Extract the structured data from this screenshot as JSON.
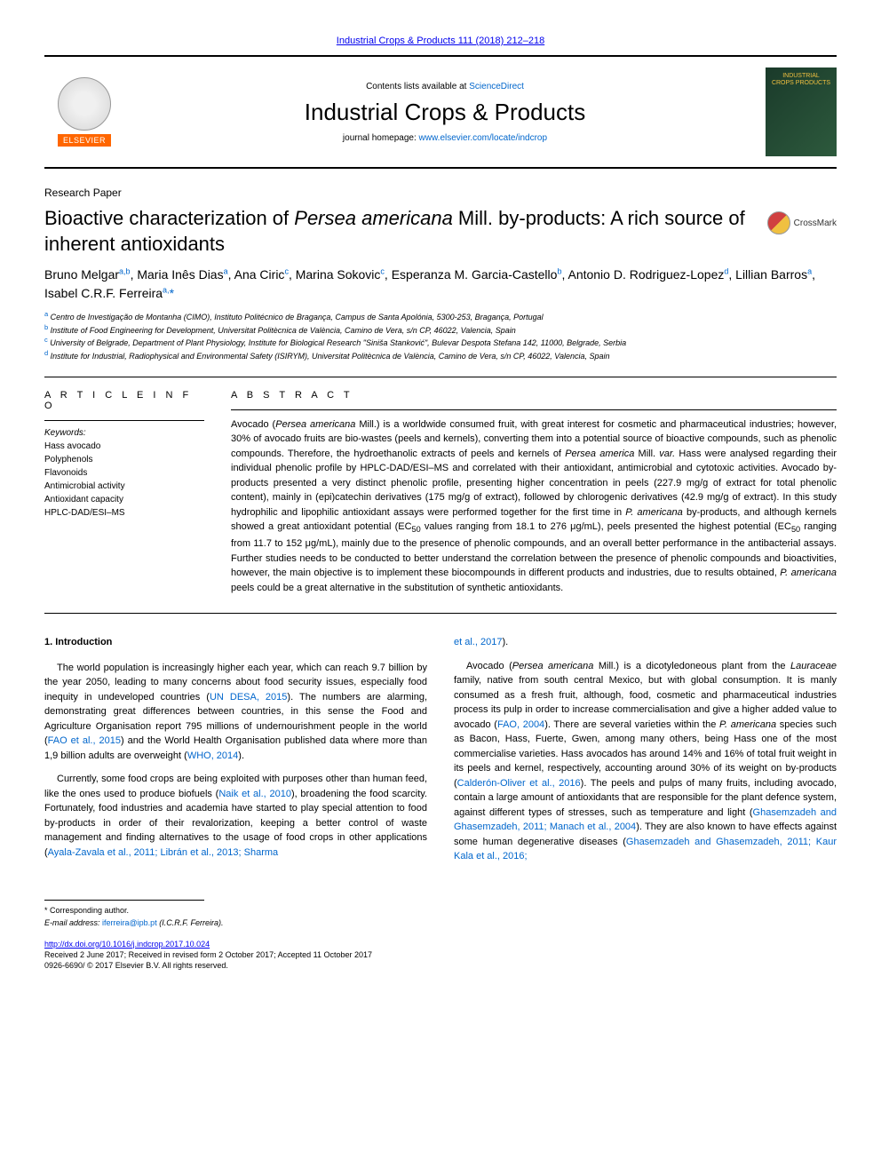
{
  "citation": "Industrial Crops & Products 111 (2018) 212–218",
  "header": {
    "contents_at": "Contents lists available at ",
    "sciencedirect": "ScienceDirect",
    "journal_name": "Industrial Crops & Products",
    "homepage_label": "journal homepage: ",
    "homepage_url": "www.elsevier.com/locate/indcrop",
    "elsevier_label": "ELSEVIER",
    "logo_text": "INDUSTRIAL CROPS PRODUCTS"
  },
  "paper_type": "Research Paper",
  "title_pre": "Bioactive characterization of ",
  "title_italic": "Persea americana",
  "title_post": " Mill. by-products: A rich source of inherent antioxidants",
  "crossmark_label": "CrossMark",
  "authors_html": "Bruno Melgar<sup>a,b</sup>, Maria Inês Dias<sup>a</sup>, Ana Ciric<sup>c</sup>, Marina Sokovic<sup>c</sup>, Esperanza M. Garcia-Castello<sup>b</sup>, Antonio D. Rodriguez-Lopez<sup>d</sup>, Lillian Barros<sup>a</sup>, Isabel C.R.F. Ferreira<sup>a,</sup><span class=\"corr\">*</span>",
  "affiliations": [
    {
      "sup": "a",
      "text": " Centro de Investigação de Montanha (CIMO), Instituto Politécnico de Bragança, Campus de Santa Apolónia, 5300-253, Bragança, Portugal"
    },
    {
      "sup": "b",
      "text": " Institute of Food Engineering for Development, Universitat Politècnica de València, Camino de Vera, s/n CP, 46022, Valencia, Spain"
    },
    {
      "sup": "c",
      "text": " University of Belgrade, Department of Plant Physiology, Institute for Biological Research \"Siniša Stanković\", Bulevar Despota Stefana 142, 11000, Belgrade, Serbia"
    },
    {
      "sup": "d",
      "text": " Institute for Industrial, Radiophysical and Environmental Safety (ISIRYM), Universitat Politècnica de València, Camino de Vera, s/n CP, 46022, Valencia, Spain"
    }
  ],
  "article_info_heading": "A R T I C L E  I N F O",
  "keywords_label": "Keywords:",
  "keywords": [
    "Hass avocado",
    "Polyphenols",
    "Flavonoids",
    "Antimicrobial activity",
    "Antioxidant capacity",
    "HPLC-DAD/ESI–MS"
  ],
  "abstract_heading": "A B S T R A C T",
  "abstract_html": "Avocado (<span class=\"italic\">Persea americana</span> Mill.) is a worldwide consumed fruit, with great interest for cosmetic and pharmaceutical industries; however, 30% of avocado fruits are bio-wastes (peels and kernels), converting them into a potential source of bioactive compounds, such as phenolic compounds. Therefore, the hydroethanolic extracts of peels and kernels of <span class=\"italic\">Persea america</span> Mill. <span class=\"italic\">var.</span> Hass were analysed regarding their individual phenolic profile by HPLC-DAD/ESI–MS and correlated with their antioxidant, antimicrobial and cytotoxic activities. Avocado by-products presented a very distinct phenolic profile, presenting higher concentration in peels (227.9 mg/g of extract for total phenolic content), mainly in (epi)catechin derivatives (175 mg/g of extract), followed by chlorogenic derivatives (42.9 mg/g of extract). In this study hydrophilic and lipophilic antioxidant assays were performed together for the first time in <span class=\"italic\">P. americana</span> by-products, and although kernels showed a great antioxidant potential (EC<sub>50</sub> values ranging from 18.1 to 276 μg/mL), peels presented the highest potential (EC<sub>50</sub> ranging from 11.7 to 152 μg/mL), mainly due to the presence of phenolic compounds, and an overall better performance in the antibacterial assays. Further studies needs to be conducted to better understand the correlation between the presence of phenolic compounds and bioactivities, however, the main objective is to implement these biocompounds in different products and industries, due to results obtained, <span class=\"italic\">P. americana</span> peels could be a great alternative in the substitution of synthetic antioxidants.",
  "intro_heading": "1. Introduction",
  "col1": {
    "p1_html": "The world population is increasingly higher each year, which can reach 9.7 billion by the year 2050, leading to many concerns about food security issues, especially food inequity in undeveloped countries (<a href=\"#\">UN DESA, 2015</a>). The numbers are alarming, demonstrating great differences between countries, in this sense the Food and Agriculture Organisation report 795 millions of undernourishment people in the world (<a href=\"#\">FAO et al., 2015</a>) and the World Health Organisation published data where more than 1,9 billion adults are overweight (<a href=\"#\">WHO, 2014</a>).",
    "p2_html": "Currently, some food crops are being exploited with purposes other than human feed, like the ones used to produce biofuels (<a href=\"#\">Naik et al., 2010</a>), broadening the food scarcity. Fortunately, food industries and academia have started to play special attention to food by-products in order of their revalorization, keeping a better control of waste management and finding alternatives to the usage of food crops in other applications (<a href=\"#\">Ayala-Zavala et al., 2011; Librán et al., 2013; Sharma</a>"
  },
  "col2": {
    "p0_html": "<a href=\"#\">et al., 2017</a>).",
    "p1_html": "Avocado (<span class=\"italic\">Persea americana</span> Mill.) is a dicotyledoneous plant from the <span class=\"italic\">Lauraceae</span> family, native from south central Mexico, but with global consumption. It is manly consumed as a fresh fruit, although, food, cosmetic and pharmaceutical industries process its pulp in order to increase commercialisation and give a higher added value to avocado (<a href=\"#\">FAO, 2004</a>). There are several varieties within the <span class=\"italic\">P. americana</span> species such as Bacon, Hass, Fuerte, Gwen, among many others, being Hass one of the most commercialise varieties. Hass avocados has around 14% and 16% of total fruit weight in its peels and kernel, respectively, accounting around 30% of its weight on by-products (<a href=\"#\">Calderón-Oliver et al., 2016</a>). The peels and pulps of many fruits, including avocado, contain a large amount of antioxidants that are responsible for the plant defence system, against different types of stresses, such as temperature and light (<a href=\"#\">Ghasemzadeh and Ghasemzadeh, 2011; Manach et al., 2004</a>). They are also known to have effects against some human degenerative diseases (<a href=\"#\">Ghasemzadeh and Ghasemzadeh, 2011; Kaur Kala et al., 2016;</a>"
  },
  "footer": {
    "corr_label": "* Corresponding author.",
    "email_label": "E-mail address: ",
    "email": "iferreira@ipb.pt",
    "email_name": " (I.C.R.F. Ferreira).",
    "doi": "http://dx.doi.org/10.1016/j.indcrop.2017.10.024",
    "received": "Received 2 June 2017; Received in revised form 2 October 2017; Accepted 11 October 2017",
    "copyright": "0926-6690/ © 2017 Elsevier B.V. All rights reserved."
  },
  "colors": {
    "link": "#0066cc",
    "elsevier_orange": "#ff6600",
    "text": "#000000",
    "bg": "#ffffff"
  }
}
